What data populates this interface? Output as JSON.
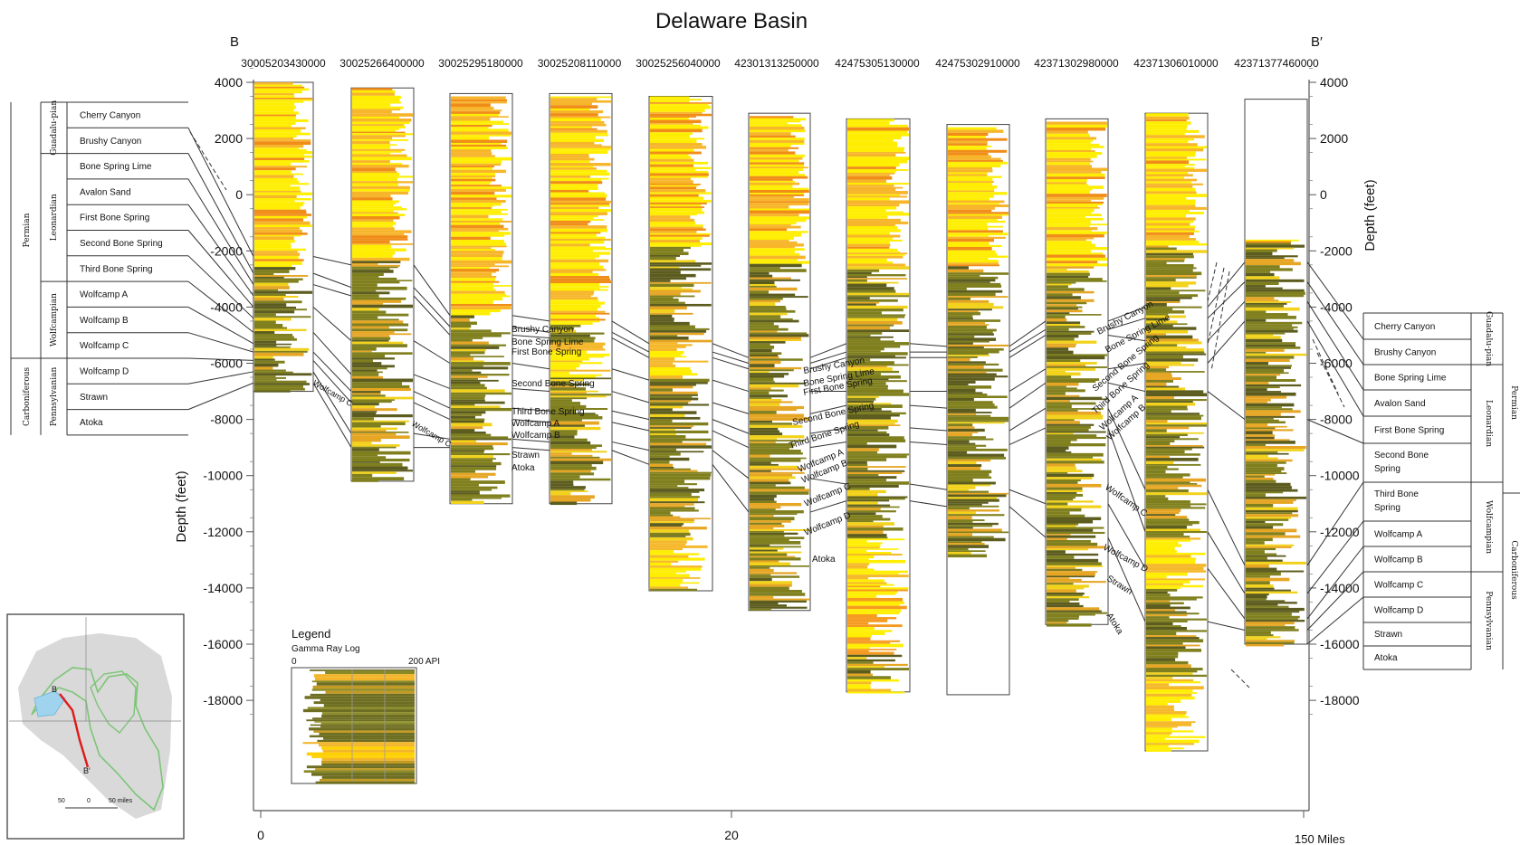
{
  "title": "Delaware Basin",
  "left_label": "B",
  "right_label": "B′",
  "well_ids": [
    "30005203430000",
    "30025266400000",
    "30025295180000",
    "30025208110000",
    "30025256040000",
    "42301313250000",
    "42475305130000",
    "42475302910000",
    "42371302980000",
    "42371306010000",
    "42371377460000"
  ],
  "depth_axis": {
    "label": "Depth (feet)",
    "ticks": [
      "4000",
      "2000",
      "0",
      "-2000",
      "-4000",
      "-6000",
      "-8000",
      "-10000",
      "-12000",
      "-14000",
      "-16000",
      "-18000"
    ],
    "right_ticks": [
      "4000",
      "2000",
      "0",
      "-2000",
      "-4000",
      "-6000",
      "-8000",
      "-10000",
      "-12000",
      "-14000",
      "-16000",
      "-18000"
    ]
  },
  "distance_axis": {
    "ticks": [
      "0",
      "20"
    ],
    "end_label": "150 Miles"
  },
  "left_column": {
    "system": [
      "Permian",
      "Carboniferous"
    ],
    "series": [
      "Guadalu-pian",
      "Leonardian",
      "Wolfcampian",
      "Pennsylvanian"
    ],
    "units": [
      "Cherry Canyon",
      "Brushy Canyon",
      "Bone Spring Lime",
      "Avalon Sand",
      "First Bone Spring",
      "Second Bone Spring",
      "Third Bone  Spring",
      "Wolfcamp A",
      "Wolfcamp B",
      "Wolfcamp C",
      "Wolfcamp D",
      "Strawn",
      "Atoka"
    ]
  },
  "right_column": {
    "system": [
      "Permian",
      "Carboniferous"
    ],
    "series": [
      "Guadalu-pian",
      "Leonardian",
      "Wolfcampian",
      "Pennsylvanian"
    ],
    "units": [
      "Cherry Canyon",
      "Brushy Canyon",
      "Bone Spring Lime",
      "Avalon Sand",
      "First Bone Spring",
      "Second Bone Spring",
      "Third Bone Spring",
      "Wolfcamp A",
      "Wolfcamp B",
      "Wolfcamp C",
      "Wolfcamp D",
      "Strawn",
      "Atoka"
    ]
  },
  "mid_labels_a": [
    "Brushy Canyon",
    "Bone Spring Lime",
    "First Bone Spring",
    "Second Bone Spring",
    "Third Bone Spring",
    "Wolfcamp A",
    "Wolfcamp B",
    "Strawn",
    "Atoka"
  ],
  "mid_labels_b": [
    "Brushy Canyon",
    "Bone Spring Lime",
    "First Bone Spring",
    "Second Bone Spring",
    "Third Bone Spring",
    "Wolfcamp A",
    "Wolfcamp B",
    "Wolfcamp C",
    "Wolfcamp D",
    "Atoka"
  ],
  "mid_labels_c": [
    "Brushy Canyon",
    "Bone Spring Lime",
    "Second Bone Spring",
    "Third Bone Spring",
    "Wolfcamp A",
    "Wolfcamp B",
    "Wolfcamp C",
    "Wolfcamp D",
    "Strawn",
    "Atoka"
  ],
  "mid_labels_d": [
    "Wolfcamp C"
  ],
  "legend": {
    "title": "Legend",
    "subtitle": "Gamma  Ray Log",
    "min": "0",
    "max": "200 API"
  },
  "map": {
    "point_b": "B",
    "point_b2": "B′",
    "scale": [
      "50",
      "0",
      "50 miles"
    ]
  },
  "colors": {
    "yellow": "#ffef00",
    "orange": "#f5a623",
    "olive": "#7f7f1e",
    "dark_olive": "#555522",
    "line": "#333333",
    "map_fill": "#d9d9d9",
    "map_outline": "#7cc576",
    "map_lake": "#9fd3ee",
    "transect": "#e01919"
  }
}
